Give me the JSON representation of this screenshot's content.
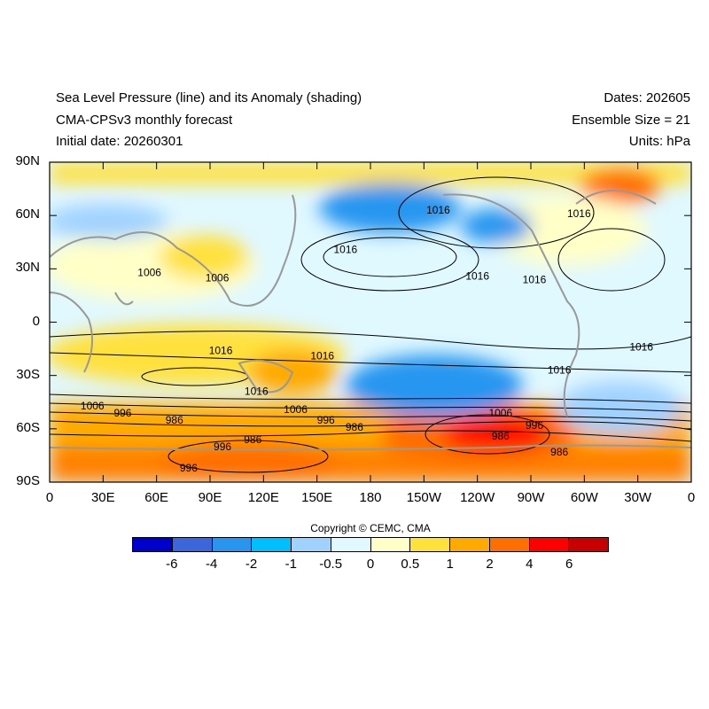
{
  "header": {
    "title_line1": "Sea Level Pressure (line) and its Anomaly (shading)",
    "title_line2": "CMA-CPSv3 monthly forecast",
    "title_line3": "Initial date: 20260301",
    "dates": "Dates: 202605",
    "ensemble": "Ensemble Size = 21",
    "units": "Units: hPa"
  },
  "map": {
    "lat_labels": [
      "90N",
      "60N",
      "30N",
      "0",
      "30S",
      "60S",
      "90S"
    ],
    "lon_labels": [
      "0",
      "30E",
      "60E",
      "90E",
      "120E",
      "150E",
      "180",
      "150W",
      "120W",
      "90W",
      "60W",
      "30W",
      "0"
    ],
    "contour_labels": [
      {
        "text": "1016",
        "lon": 218,
        "lat": 62
      },
      {
        "text": "1016",
        "lon": 166,
        "lat": 40
      },
      {
        "text": "1016",
        "lon": 240,
        "lat": 25
      },
      {
        "text": "1016",
        "lon": 297,
        "lat": 60
      },
      {
        "text": "1016",
        "lon": 272,
        "lat": 23
      },
      {
        "text": "1016",
        "lon": 96,
        "lat": -17
      },
      {
        "text": "1016",
        "lon": 153,
        "lat": -20
      },
      {
        "text": "1016",
        "lon": 116,
        "lat": -40
      },
      {
        "text": "1016",
        "lon": 286,
        "lat": -28
      },
      {
        "text": "1016",
        "lon": 332,
        "lat": -15
      },
      {
        "text": "1006",
        "lon": 56,
        "lat": 27
      },
      {
        "text": "1006",
        "lon": 94,
        "lat": 24
      },
      {
        "text": "1006",
        "lon": 24,
        "lat": -48
      },
      {
        "text": "1006",
        "lon": 138,
        "lat": -50
      },
      {
        "text": "1006",
        "lon": 253,
        "lat": -52
      },
      {
        "text": "996",
        "lon": 41,
        "lat": -52
      },
      {
        "text": "996",
        "lon": 155,
        "lat": -56
      },
      {
        "text": "996",
        "lon": 272,
        "lat": -59
      },
      {
        "text": "996",
        "lon": 97,
        "lat": -71
      },
      {
        "text": "996",
        "lon": 78,
        "lat": -83
      },
      {
        "text": "986",
        "lon": 70,
        "lat": -56
      },
      {
        "text": "986",
        "lon": 114,
        "lat": -67
      },
      {
        "text": "986",
        "lon": 171,
        "lat": -60
      },
      {
        "text": "986",
        "lon": 253,
        "lat": -65
      },
      {
        "text": "986",
        "lon": 286,
        "lat": -74
      }
    ]
  },
  "colorbar": {
    "colors": [
      "#0000cd",
      "#3c66dc",
      "#2896f0",
      "#00bfff",
      "#a0d2ff",
      "#e0f8ff",
      "#ffffc8",
      "#ffe13c",
      "#ffaa00",
      "#ff6e00",
      "#ff0000",
      "#c80000"
    ],
    "labels": [
      "-6",
      "-4",
      "-2",
      "-1",
      "-0.5",
      "0",
      "0.5",
      "1",
      "2",
      "4",
      "6"
    ]
  },
  "copyright": "Copyright © CEMC, CMA"
}
